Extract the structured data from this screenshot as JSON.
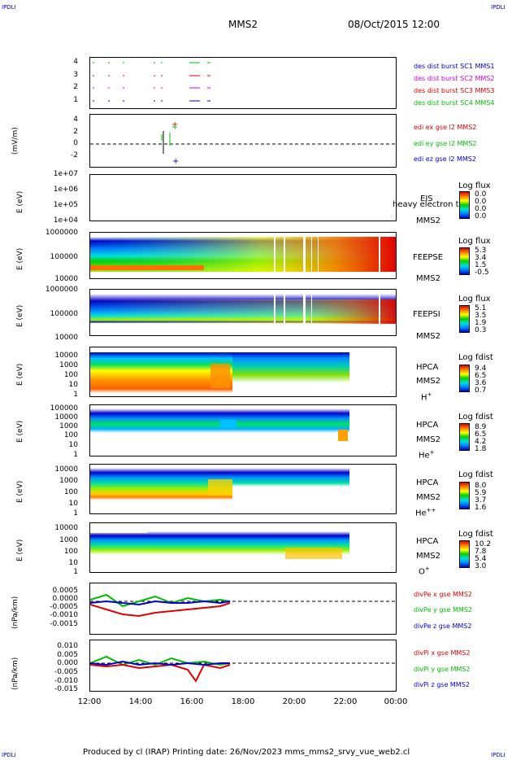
{
  "header": {
    "corner_left": "IPDLI",
    "corner_right": "IPDLI",
    "title": "MMS2",
    "date": "08/Oct/2015 12:00"
  },
  "footer": {
    "corner_left": "IPDLI",
    "corner_right": "IPDLI",
    "text": "Produced by cl (IRAP)   Printing date: 26/Nov/2023   mms_mms2_srvy_vue_web2.cl"
  },
  "x_axis": {
    "ticks": [
      "12:00",
      "14:00",
      "16:00",
      "18:00",
      "20:00",
      "22:00",
      "00:00"
    ]
  },
  "colors": {
    "blue": "#0000cc",
    "red": "#dd0000",
    "green": "#00bb00",
    "magenta": "#cc00cc"
  },
  "chart_data": [
    {
      "type": "scatter",
      "name": "burst",
      "yticks": [
        "4",
        "3",
        "2",
        "1"
      ],
      "legend": [
        {
          "label": "des dist burst SC1 MMS1",
          "color": "#0000cc"
        },
        {
          "label": "des dist burst SC2 MMS2",
          "color": "#cc00cc"
        },
        {
          "label": "des dist burst SC3 MMS3",
          "color": "#dd0000"
        },
        {
          "label": "des dist burst SC4 MMS4",
          "color": "#00bb00"
        }
      ]
    },
    {
      "type": "line",
      "ylabel": "(mV/m)",
      "yticks": [
        "4",
        "2",
        "0",
        "-2"
      ],
      "legend": [
        {
          "label": "edi ex gse l2 MMS2",
          "color": "#dd0000"
        },
        {
          "label": "edi ey gse l2 MMS2",
          "color": "#00bb00"
        },
        {
          "label": "edi ez gse l2 MMS2",
          "color": "#0000cc"
        }
      ]
    },
    {
      "type": "heatmap",
      "ylabel": "E (eV)",
      "yticks": [
        "1e+07",
        "1e+06",
        "1e+05",
        "1e+04"
      ],
      "instrument": "EIS",
      "overlay": "heavy electron to",
      "sc": "MMS2",
      "cbar_title": "Log flux",
      "cbar": [
        "0.0",
        "0.0",
        "0.0",
        "0.0"
      ]
    },
    {
      "type": "heatmap",
      "ylabel": "E (eV)",
      "yticks": [
        "1000000",
        "100000",
        "10000"
      ],
      "instrument": "FEEPSE",
      "sc": "MMS2",
      "cbar_title": "Log flux",
      "cbar": [
        "5.3",
        "3.4",
        "1.5",
        "-0.5"
      ]
    },
    {
      "type": "heatmap",
      "ylabel": "E (eV)",
      "yticks": [
        "1000000",
        "100000",
        "10000"
      ],
      "instrument": "FEEPSI",
      "sc": "MMS2",
      "cbar_title": "Log flux",
      "cbar": [
        "5.1",
        "3.5",
        "1.9",
        "0.3"
      ]
    },
    {
      "type": "heatmap",
      "ylabel": "E (eV)",
      "yticks": [
        "10000",
        "1000",
        "100",
        "10",
        "1"
      ],
      "instrument": "HPCA",
      "sc": "MMS2",
      "species": "H",
      "species_sup": "+",
      "cbar_title": "Log fdist",
      "cbar": [
        "9.4",
        "6.5",
        "3.6",
        "0.7"
      ]
    },
    {
      "type": "heatmap",
      "ylabel": "E (eV)",
      "yticks": [
        "100000",
        "10000",
        "1000",
        "100",
        "10",
        "1"
      ],
      "instrument": "HPCA",
      "sc": "MMS2",
      "species": "He",
      "species_sup": "+",
      "cbar_title": "Log fdist",
      "cbar": [
        "8.9",
        "6.5",
        "4.2",
        "1.8"
      ]
    },
    {
      "type": "heatmap",
      "ylabel": "E (eV)",
      "yticks": [
        "10000",
        "1000",
        "100",
        "10",
        "1"
      ],
      "instrument": "HPCA",
      "sc": "MMS2",
      "species": "He",
      "species_sup": "++",
      "cbar_title": "Log fdist",
      "cbar": [
        "8.0",
        "5.9",
        "3.7",
        "1.6"
      ]
    },
    {
      "type": "heatmap",
      "ylabel": "E (eV)",
      "yticks": [
        "10000",
        "1000",
        "100",
        "10",
        "1"
      ],
      "instrument": "HPCA",
      "sc": "MMS2",
      "species": "O",
      "species_sup": "+",
      "cbar_title": "Log fdist",
      "cbar": [
        "10.2",
        "7.8",
        "5.4",
        "3.0"
      ]
    },
    {
      "type": "line",
      "ylabel": "(nPa/km)",
      "yticks": [
        "0.0005",
        "0.0000",
        "-0.0005",
        "-0.0010",
        "-0.0015"
      ],
      "legend": [
        {
          "label": "divPe x gse MMS2",
          "color": "#dd0000"
        },
        {
          "label": "divPe y gse MMS2",
          "color": "#00bb00"
        },
        {
          "label": "divPe z gse MMS2",
          "color": "#0000cc"
        }
      ]
    },
    {
      "type": "line",
      "ylabel": "(nPa/km)",
      "yticks": [
        "0.010",
        "0.005",
        "0.000",
        "-0.005",
        "-0.010",
        "-0.015"
      ],
      "legend": [
        {
          "label": "divPi x gse MMS2",
          "color": "#dd0000"
        },
        {
          "label": "divPi y gse MMS2",
          "color": "#00bb00"
        },
        {
          "label": "divPi z gse MMS2",
          "color": "#0000cc"
        }
      ]
    }
  ]
}
